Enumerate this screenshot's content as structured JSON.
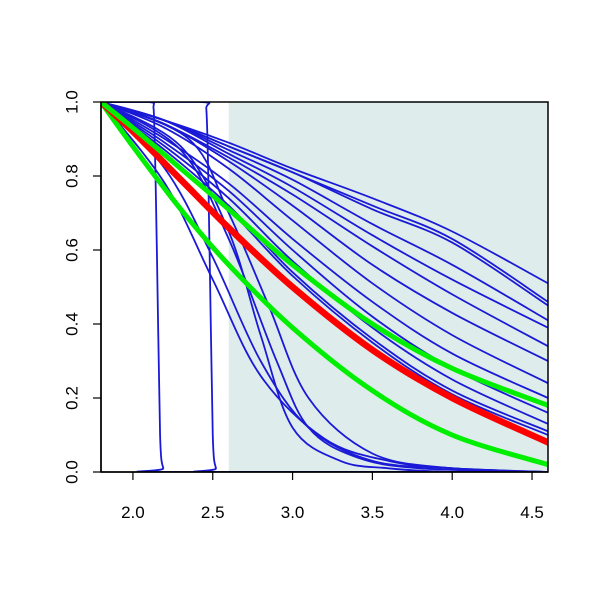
{
  "chart_data": {
    "type": "line",
    "title": "",
    "xlabel": "",
    "ylabel": "",
    "xlim": [
      1.8,
      4.6
    ],
    "ylim": [
      0,
      1
    ],
    "grid": false,
    "xticks": [
      2.0,
      2.5,
      3.0,
      3.5,
      4.0,
      4.5
    ],
    "xtick_labels": [
      "2.0",
      "2.5",
      "3.0",
      "3.5",
      "4.0",
      "4.5"
    ],
    "yticks": [
      0.0,
      0.2,
      0.4,
      0.6,
      0.8,
      1.0
    ],
    "ytick_labels": [
      "0.0",
      "0.2",
      "0.4",
      "0.6",
      "0.8",
      "1.0"
    ],
    "shaded_region": {
      "x": [
        2.6,
        4.6
      ],
      "color": "#dfecec"
    },
    "colors": {
      "blue": "#1a1ad6",
      "red": "#ff0000",
      "green": "#00ee00"
    },
    "series": [
      {
        "color": "blue",
        "x": [
          1.8,
          2.1,
          2.13,
          2.15,
          2.17,
          2.19,
          2.21,
          4.6
        ],
        "y": [
          1.0,
          1.0,
          0.98,
          0.6,
          0.1,
          0.01,
          0.0,
          0.0
        ]
      },
      {
        "color": "blue",
        "x": [
          1.8,
          2.42,
          2.46,
          2.48,
          2.5,
          2.52,
          2.54,
          4.6
        ],
        "y": [
          1.0,
          1.0,
          0.98,
          0.6,
          0.1,
          0.01,
          0.0,
          0.0
        ]
      },
      {
        "color": "blue",
        "x": [
          1.8,
          2.3,
          2.6,
          2.8,
          3.0,
          3.3,
          3.6,
          4.0,
          4.6
        ],
        "y": [
          1.0,
          0.88,
          0.65,
          0.37,
          0.12,
          0.03,
          0.01,
          0.0,
          0.0
        ]
      },
      {
        "color": "blue",
        "x": [
          1.8,
          2.3,
          2.6,
          2.9,
          3.1,
          3.4,
          3.8,
          4.6
        ],
        "y": [
          1.0,
          0.87,
          0.63,
          0.3,
          0.12,
          0.04,
          0.01,
          0.0
        ]
      },
      {
        "color": "blue",
        "x": [
          1.8,
          2.2,
          2.5,
          2.8,
          3.1,
          3.5,
          4.0,
          4.6
        ],
        "y": [
          1.0,
          0.82,
          0.58,
          0.3,
          0.12,
          0.03,
          0.01,
          0.0
        ]
      },
      {
        "color": "blue",
        "x": [
          1.8,
          2.2,
          2.5,
          2.8,
          3.2,
          3.6,
          4.0,
          4.6
        ],
        "y": [
          1.0,
          0.78,
          0.52,
          0.26,
          0.09,
          0.03,
          0.01,
          0.0
        ]
      },
      {
        "color": "blue",
        "x": [
          1.8,
          2.35,
          2.6,
          2.85,
          3.1,
          3.5,
          4.0,
          4.6
        ],
        "y": [
          1.0,
          0.9,
          0.7,
          0.45,
          0.2,
          0.05,
          0.01,
          0.0
        ]
      },
      {
        "color": "blue",
        "x": [
          1.8,
          2.2,
          2.6,
          3.0,
          3.5,
          4.0,
          4.6
        ],
        "y": [
          1.0,
          0.87,
          0.72,
          0.54,
          0.36,
          0.22,
          0.11
        ]
      },
      {
        "color": "blue",
        "x": [
          1.8,
          2.2,
          2.6,
          3.0,
          3.5,
          4.0,
          4.6
        ],
        "y": [
          1.0,
          0.86,
          0.71,
          0.53,
          0.35,
          0.21,
          0.1
        ]
      },
      {
        "color": "blue",
        "x": [
          1.8,
          2.2,
          2.6,
          3.0,
          3.5,
          4.0,
          4.6
        ],
        "y": [
          1.0,
          0.88,
          0.74,
          0.57,
          0.39,
          0.25,
          0.13
        ]
      },
      {
        "color": "blue",
        "x": [
          1.8,
          2.2,
          2.6,
          3.0,
          3.5,
          4.0,
          4.6
        ],
        "y": [
          1.0,
          0.89,
          0.76,
          0.6,
          0.42,
          0.28,
          0.16
        ]
      },
      {
        "color": "blue",
        "x": [
          1.8,
          2.2,
          2.6,
          3.0,
          3.5,
          4.0,
          4.6
        ],
        "y": [
          1.0,
          0.9,
          0.78,
          0.63,
          0.46,
          0.32,
          0.2
        ]
      },
      {
        "color": "blue",
        "x": [
          1.8,
          2.2,
          2.6,
          3.0,
          3.5,
          4.0,
          4.6
        ],
        "y": [
          1.0,
          0.93,
          0.82,
          0.68,
          0.51,
          0.37,
          0.24
        ]
      },
      {
        "color": "blue",
        "x": [
          1.8,
          2.2,
          2.6,
          3.0,
          3.5,
          4.0,
          4.6
        ],
        "y": [
          1.0,
          0.94,
          0.84,
          0.72,
          0.56,
          0.43,
          0.3
        ]
      },
      {
        "color": "blue",
        "x": [
          1.8,
          2.2,
          2.6,
          3.0,
          3.5,
          4.0,
          4.6
        ],
        "y": [
          1.0,
          0.94,
          0.85,
          0.75,
          0.61,
          0.48,
          0.34
        ]
      },
      {
        "color": "blue",
        "x": [
          1.8,
          2.2,
          2.6,
          3.0,
          3.5,
          4.0,
          4.6
        ],
        "y": [
          1.0,
          0.95,
          0.86,
          0.77,
          0.64,
          0.52,
          0.39
        ]
      },
      {
        "color": "blue",
        "x": [
          1.8,
          2.2,
          2.6,
          3.0,
          3.5,
          4.0,
          4.6
        ],
        "y": [
          1.0,
          0.95,
          0.87,
          0.79,
          0.67,
          0.56,
          0.41
        ]
      },
      {
        "color": "blue",
        "x": [
          1.8,
          2.2,
          2.6,
          3.0,
          3.5,
          4.0,
          4.6
        ],
        "y": [
          1.0,
          0.95,
          0.88,
          0.81,
          0.71,
          0.62,
          0.45
        ]
      },
      {
        "color": "blue",
        "x": [
          1.8,
          2.2,
          2.6,
          3.0,
          3.5,
          4.0,
          4.6
        ],
        "y": [
          1.0,
          0.95,
          0.88,
          0.81,
          0.72,
          0.63,
          0.46
        ]
      },
      {
        "color": "blue",
        "x": [
          1.8,
          2.2,
          2.6,
          3.0,
          3.5,
          4.0,
          4.6
        ],
        "y": [
          1.0,
          0.95,
          0.89,
          0.82,
          0.74,
          0.65,
          0.51
        ]
      },
      {
        "color": "green",
        "x": [
          1.8,
          2.0,
          2.3,
          2.6,
          3.0,
          3.5,
          4.0,
          4.6
        ],
        "y": [
          1.0,
          0.88,
          0.71,
          0.56,
          0.39,
          0.22,
          0.1,
          0.02
        ]
      },
      {
        "color": "red",
        "x": [
          1.8,
          2.0,
          2.3,
          2.6,
          3.0,
          3.5,
          4.0,
          4.6
        ],
        "y": [
          1.0,
          0.92,
          0.79,
          0.66,
          0.5,
          0.33,
          0.2,
          0.08
        ]
      },
      {
        "color": "green",
        "x": [
          1.8,
          2.0,
          2.3,
          2.6,
          3.0,
          3.5,
          4.0,
          4.6
        ],
        "y": [
          1.0,
          0.93,
          0.82,
          0.71,
          0.56,
          0.4,
          0.28,
          0.18
        ]
      }
    ]
  }
}
